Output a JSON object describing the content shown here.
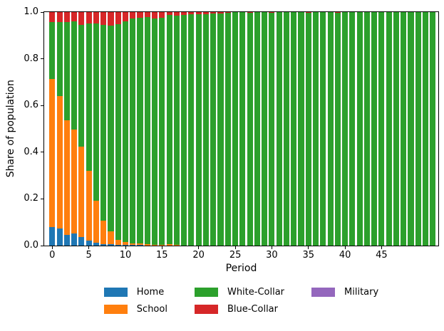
{
  "chart_data": {
    "type": "bar",
    "stacked": true,
    "orientation": "vertical",
    "title": "",
    "xlabel": "Period",
    "ylabel": "Share of population",
    "ylim": [
      0.0,
      1.0
    ],
    "grid": false,
    "x": [
      0,
      1,
      2,
      3,
      4,
      5,
      6,
      7,
      8,
      9,
      10,
      11,
      12,
      13,
      14,
      15,
      16,
      17,
      18,
      19,
      20,
      21,
      22,
      23,
      24,
      25,
      26,
      27,
      28,
      29,
      30,
      31,
      32,
      33,
      34,
      35,
      36,
      37,
      38,
      39,
      40,
      41,
      42,
      43,
      44,
      45,
      46,
      47,
      48,
      49,
      50,
      51,
      52
    ],
    "series": [
      {
        "name": "Home",
        "color": "#1f77b4",
        "values": [
          0.08,
          0.073,
          0.046,
          0.053,
          0.037,
          0.022,
          0.012,
          0.007,
          0.007,
          0.004,
          0.004,
          0.002,
          0.002,
          0.001,
          0.001,
          0.001,
          0.001,
          0,
          0,
          0,
          0,
          0,
          0,
          0,
          0,
          0,
          0,
          0,
          0,
          0,
          0,
          0,
          0,
          0,
          0,
          0,
          0,
          0,
          0,
          0,
          0,
          0,
          0,
          0,
          0,
          0,
          0,
          0,
          0,
          0,
          0,
          0,
          0
        ]
      },
      {
        "name": "School",
        "color": "#ff7f0e",
        "values": [
          0.633,
          0.567,
          0.491,
          0.443,
          0.388,
          0.298,
          0.181,
          0.1,
          0.054,
          0.021,
          0.012,
          0.008,
          0.006,
          0.005,
          0.003,
          0.002,
          0.004,
          0.003,
          0.001,
          0.001,
          0,
          0,
          0,
          0,
          0,
          0,
          0,
          0,
          0,
          0,
          0,
          0,
          0,
          0,
          0,
          0,
          0,
          0,
          0,
          0,
          0,
          0,
          0,
          0,
          0,
          0,
          0,
          0,
          0,
          0,
          0,
          0,
          0
        ]
      },
      {
        "name": "White-Collar",
        "color": "#2ca02c",
        "values": [
          0.243,
          0.318,
          0.421,
          0.466,
          0.52,
          0.63,
          0.757,
          0.839,
          0.881,
          0.924,
          0.946,
          0.963,
          0.967,
          0.973,
          0.969,
          0.973,
          0.982,
          0.982,
          0.987,
          0.989,
          0.992,
          0.99,
          0.993,
          0.995,
          0.996,
          1,
          1,
          0.996,
          1,
          1,
          0.996,
          1,
          1,
          1,
          1,
          0.996,
          1,
          1,
          1,
          0.996,
          1,
          1,
          1,
          1,
          1,
          1,
          1,
          1,
          1,
          1,
          1,
          1,
          1
        ]
      },
      {
        "name": "Blue-Collar",
        "color": "#d62728",
        "values": [
          0.044,
          0.042,
          0.042,
          0.038,
          0.055,
          0.05,
          0.05,
          0.054,
          0.058,
          0.051,
          0.038,
          0.027,
          0.025,
          0.021,
          0.027,
          0.024,
          0.013,
          0.015,
          0.012,
          0.01,
          0.008,
          0.01,
          0.007,
          0.005,
          0.004,
          0,
          0,
          0.004,
          0,
          0,
          0.004,
          0,
          0,
          0,
          0,
          0.004,
          0,
          0,
          0,
          0.004,
          0,
          0,
          0,
          0,
          0,
          0,
          0,
          0,
          0,
          0,
          0,
          0,
          0
        ]
      },
      {
        "name": "Military",
        "color": "#9467bd",
        "values": [
          0,
          0,
          0,
          0,
          0,
          0,
          0,
          0,
          0,
          0,
          0,
          0,
          0,
          0,
          0,
          0,
          0,
          0,
          0,
          0,
          0,
          0,
          0,
          0,
          0,
          0,
          0,
          0,
          0,
          0,
          0,
          0,
          0,
          0,
          0,
          0,
          0,
          0,
          0,
          0,
          0,
          0,
          0,
          0,
          0,
          0,
          0,
          0,
          0,
          0,
          0,
          0,
          0
        ]
      }
    ],
    "xticks": {
      "values": [
        0,
        5,
        10,
        15,
        20,
        25,
        30,
        35,
        40,
        45
      ],
      "labels": [
        "0",
        "5",
        "10",
        "15",
        "20",
        "25",
        "30",
        "35",
        "40",
        "45"
      ]
    },
    "yticks": {
      "values": [
        0.0,
        0.2,
        0.4,
        0.6,
        0.8,
        1.0
      ],
      "labels": [
        "0.0",
        "0.2",
        "0.4",
        "0.6",
        "0.8",
        "1.0"
      ]
    },
    "legend": {
      "position": "bottom-center",
      "ncol": 3,
      "rows": 2,
      "entries": [
        "Home",
        "School",
        "White-Collar",
        "Blue-Collar",
        "Military"
      ]
    }
  }
}
